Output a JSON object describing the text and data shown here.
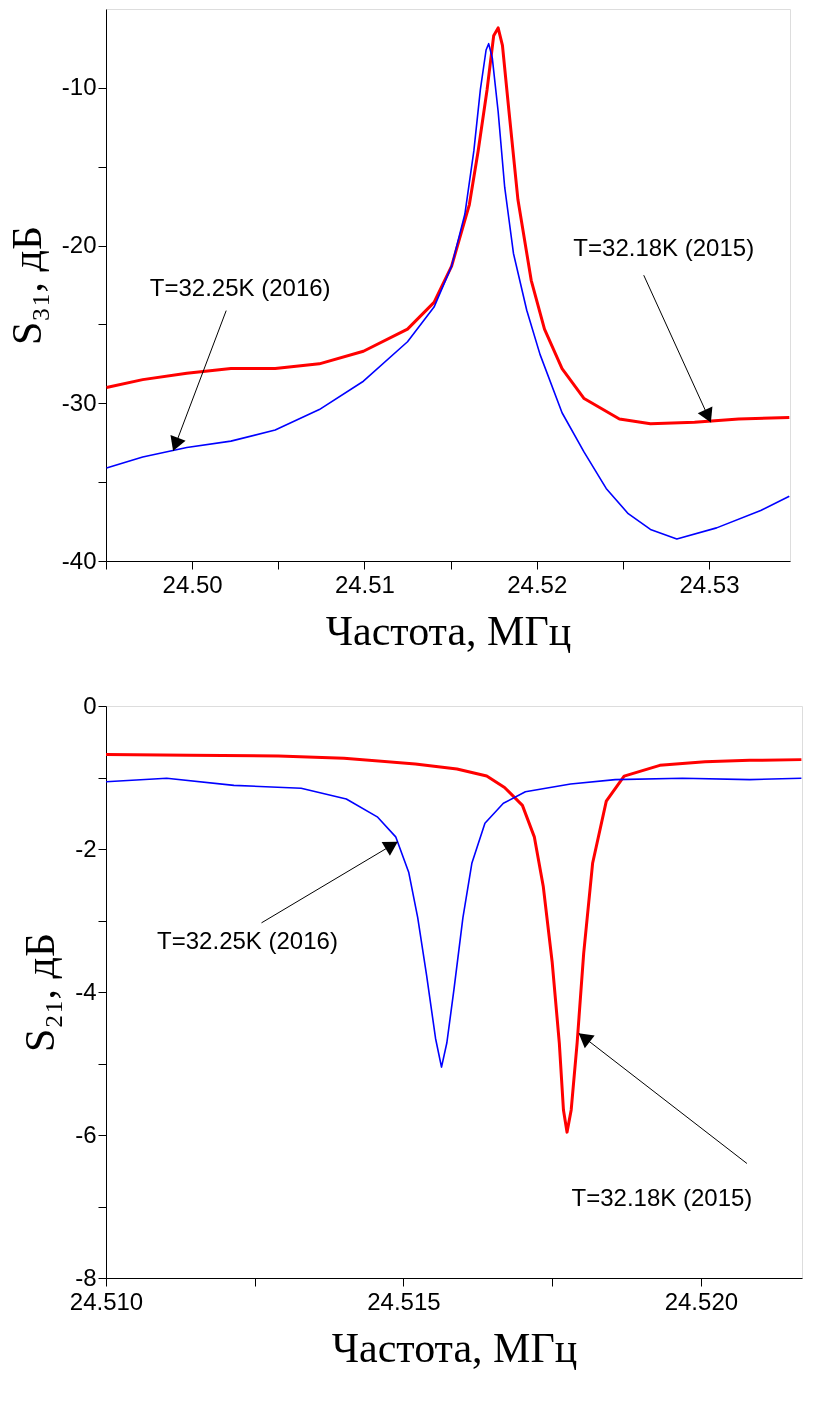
{
  "chart_data": [
    {
      "type": "line",
      "xlabel": "Частота, МГц",
      "ylabel": "S₃₁, дБ",
      "xlim": [
        24.495,
        24.5347
      ],
      "ylim": [
        -40,
        -5
      ],
      "xticks": [
        {
          "value": 24.495,
          "label": null
        },
        {
          "value": 24.5,
          "label": "24.50"
        },
        {
          "value": 24.505,
          "label": null
        },
        24.51,
        {
          "value": 24.515,
          "label": null
        },
        24.52,
        {
          "value": 24.525,
          "label": null
        },
        24.53
      ],
      "yticks": [
        -40,
        {
          "value": -35,
          "label": null
        },
        -30,
        {
          "value": -25,
          "label": null
        },
        -20,
        {
          "value": -15,
          "label": null
        },
        -10
      ],
      "grid": false,
      "legend": false,
      "marker": "none",
      "line_style": "solid",
      "series": [
        {
          "color": "#ff0000",
          "x": [
            24.49503,
            24.49713,
            24.49969,
            24.50225,
            24.50482,
            24.50738,
            24.50994,
            24.5125,
            24.51404,
            24.51506,
            24.51609,
            24.5166,
            24.51712,
            24.5175,
            24.51776,
            24.51801,
            24.51839,
            24.51891,
            24.51968,
            24.52045,
            24.52147,
            24.52275,
            24.5248,
            24.5266,
            24.52916,
            24.53172,
            24.53466
          ],
          "values": [
            -29.0,
            -28.5,
            -28.1,
            -27.8,
            -27.8,
            -27.5,
            -26.7,
            -25.3,
            -23.6,
            -21.3,
            -17.4,
            -14.0,
            -10.1,
            -6.7,
            -6.2,
            -7.3,
            -11.5,
            -17.1,
            -22.2,
            -25.3,
            -27.8,
            -29.7,
            -31.0,
            -31.3,
            -31.2,
            -31.0,
            -30.9
          ]
        },
        {
          "color": "#0000ff",
          "x": [
            24.49503,
            24.49713,
            24.49969,
            24.50225,
            24.50482,
            24.50738,
            24.50994,
            24.5125,
            24.51404,
            24.51506,
            24.51583,
            24.51635,
            24.51673,
            24.51706,
            24.51721,
            24.51742,
            24.51776,
            24.51814,
            24.51865,
            24.51942,
            24.52019,
            24.52147,
            24.52275,
            24.52403,
            24.52531,
            24.5266,
            24.52813,
            24.53044,
            24.533,
            24.53466
          ],
          "values": [
            -34.1,
            -33.4,
            -32.8,
            -32.4,
            -31.7,
            -30.4,
            -28.6,
            -26.1,
            -23.9,
            -21.3,
            -18.0,
            -14.0,
            -10.1,
            -7.6,
            -7.2,
            -8.1,
            -11.5,
            -16.3,
            -20.5,
            -24.1,
            -26.9,
            -30.6,
            -33.1,
            -35.4,
            -37.0,
            -38.0,
            -38.6,
            -37.9,
            -36.8,
            -35.9
          ]
        }
      ],
      "annotations": [
        {
          "text": "T=32.25K (2016)",
          "x": 24.4989,
          "y": -33.0
        },
        {
          "text": "T=32.18K (2015)",
          "x": 24.5301,
          "y": -31.2
        }
      ]
    },
    {
      "type": "line",
      "xlabel": "Частота, МГц",
      "ylabel": "S₂₁, дБ",
      "xlim": [
        24.51,
        24.5217
      ],
      "ylim": [
        -8,
        0
      ],
      "xticks": [
        {
          "value": 24.51,
          "label": "24.510"
        },
        {
          "value": 24.5125,
          "label": null
        },
        24.515,
        {
          "value": 24.5175,
          "label": null
        },
        {
          "value": 24.52,
          "label": "24.520"
        }
      ],
      "yticks": [
        -8,
        {
          "value": -7,
          "label": null
        },
        -6,
        {
          "value": -5,
          "label": null
        },
        -4,
        {
          "value": -3,
          "label": null
        },
        -2,
        {
          "value": -1,
          "label": null
        },
        0
      ],
      "grid": false,
      "legend": false,
      "marker": "none",
      "line_style": "solid",
      "series": [
        {
          "color": "#ff0000",
          "x": [
            24.51,
            24.5114,
            24.5129,
            24.514,
            24.5152,
            24.5159,
            24.5164,
            24.5167,
            24.517,
            24.5172,
            24.51735,
            24.5175,
            24.51762,
            24.51769,
            24.51775,
            24.51782,
            24.51792,
            24.51803,
            24.51818,
            24.51841,
            24.51871,
            24.51931,
            24.52007,
            24.52082,
            24.52169
          ],
          "values": [
            -0.68,
            -0.69,
            -0.7,
            -0.73,
            -0.81,
            -0.88,
            -0.98,
            -1.14,
            -1.39,
            -1.83,
            -2.52,
            -3.58,
            -4.71,
            -5.65,
            -5.96,
            -5.65,
            -4.71,
            -3.46,
            -2.2,
            -1.33,
            -0.98,
            -0.83,
            -0.78,
            -0.76,
            -0.75
          ]
        },
        {
          "color": "#0000ff",
          "x": [
            24.51,
            24.51102,
            24.51215,
            24.51328,
            24.51404,
            24.51456,
            24.51487,
            24.51509,
            24.51524,
            24.51539,
            24.51554,
            24.51564,
            24.51573,
            24.51585,
            24.516,
            24.51615,
            24.51637,
            24.51668,
            24.51705,
            24.51781,
            24.51856,
            24.51969,
            24.52082,
            24.52169
          ],
          "values": [
            -1.06,
            -1.01,
            -1.11,
            -1.15,
            -1.3,
            -1.55,
            -1.83,
            -2.33,
            -2.96,
            -3.77,
            -4.65,
            -5.05,
            -4.71,
            -3.96,
            -2.96,
            -2.2,
            -1.64,
            -1.36,
            -1.2,
            -1.09,
            -1.03,
            -1.01,
            -1.03,
            -1.01
          ]
        }
      ],
      "annotations": [
        {
          "text": "T=32.25K (2016)",
          "x": 24.5149,
          "y": -1.9
        },
        {
          "text": "T=32.18K (2015)",
          "x": 24.51795,
          "y": -4.58
        }
      ]
    }
  ]
}
